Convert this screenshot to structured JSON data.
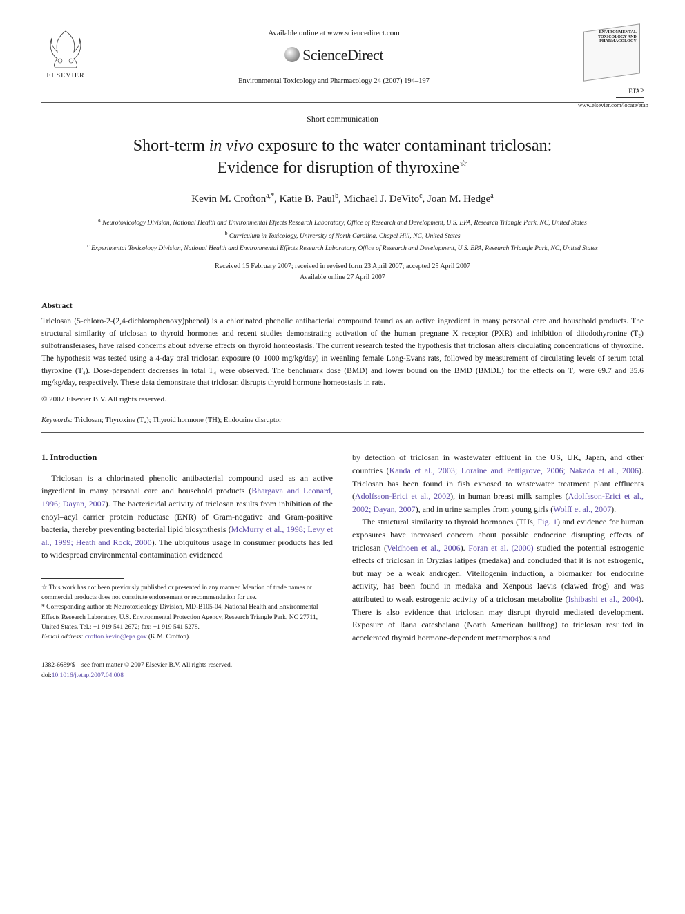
{
  "header": {
    "elsevier_label": "ELSEVIER",
    "available_online": "Available online at www.sciencedirect.com",
    "sciencedirect_label": "ScienceDirect",
    "journal_reference": "Environmental Toxicology and Pharmacology 24 (2007) 194–197",
    "journal_cover_title": "ENVIRONMENTAL\nTOXICOLOGY AND\nPHARMACOLOGY",
    "etap_label": "ETAP",
    "journal_url": "www.elsevier.com/locate/etap"
  },
  "article": {
    "type": "Short communication",
    "title_line1": "Short-term in vivo exposure to the water contaminant triclosan:",
    "title_line2": "Evidence for disruption of thyroxine",
    "title_star": "☆"
  },
  "authors": {
    "a1": "Kevin M. Crofton",
    "a1_sup": "a,*",
    "a2": "Katie B. Paul",
    "a2_sup": "b",
    "a3": "Michael J. DeVito",
    "a3_sup": "c",
    "a4": "Joan M. Hedge",
    "a4_sup": "a"
  },
  "affiliations": {
    "a": "Neurotoxicology Division, National Health and Environmental Effects Research Laboratory, Office of Research and Development, U.S. EPA, Research Triangle Park, NC, United States",
    "b": "Curriculum in Toxicology, University of North Carolina, Chapel Hill, NC, United States",
    "c": "Experimental Toxicology Division, National Health and Environmental Effects Research Laboratory, Office of Research and Development, U.S. EPA, Research Triangle Park, NC, United States"
  },
  "dates": {
    "received": "Received 15 February 2007; received in revised form 23 April 2007; accepted 25 April 2007",
    "available": "Available online 27 April 2007"
  },
  "abstract": {
    "heading": "Abstract",
    "body": "Triclosan (5-chloro-2-(2,4-dichlorophenoxy)phenol) is a chlorinated phenolic antibacterial compound found as an active ingredient in many personal care and household products. The structural similarity of triclosan to thyroid hormones and recent studies demonstrating activation of the human pregnane X receptor (PXR) and inhibition of diiodothyronine (T₂) sulfotransferases, have raised concerns about adverse effects on thyroid homeostasis. The current research tested the hypothesis that triclosan alters circulating concentrations of thyroxine. The hypothesis was tested using a 4-day oral triclosan exposure (0–1000 mg/kg/day) in weanling female Long-Evans rats, followed by measurement of circulating levels of serum total thyroxine (T₄). Dose-dependent decreases in total T₄ were observed. The benchmark dose (BMD) and lower bound on the BMD (BMDL) for the effects on T₄ were 69.7 and 35.6 mg/kg/day, respectively. These data demonstrate that triclosan disrupts thyroid hormone homeostasis in rats.",
    "copyright": "© 2007 Elsevier B.V. All rights reserved."
  },
  "keywords": {
    "label": "Keywords:",
    "list": "Triclosan; Thyroxine (T₄); Thyroid hormone (TH); Endocrine disruptor"
  },
  "section1": {
    "heading": "1. Introduction",
    "p1_a": "Triclosan is a chlorinated phenolic antibacterial compound used as an active ingredient in many personal care and household products (",
    "p1_link1": "Bhargava and Leonard, 1996; Dayan, 2007",
    "p1_b": "). The bactericidal activity of triclosan results from inhibition of the enoyl–acyl carrier protein reductase (ENR) of Gram-negative and Gram-positive bacteria, thereby preventing bacterial lipid biosynthesis (",
    "p1_link2": "McMurry et al., 1998; Levy et al., 1999; Heath and Rock, 2000",
    "p1_c": "). The ubiquitous usage in consumer products has led to widespread environmental contamination evidenced",
    "p2_a": "by detection of triclosan in wastewater effluent in the US, UK, Japan, and other countries (",
    "p2_link1": "Kanda et al., 2003; Loraine and Pettigrove, 2006; Nakada et al., 2006",
    "p2_b": "). Triclosan has been found in fish exposed to wastewater treatment plant effluents (",
    "p2_link2": "Adolfsson-Erici et al., 2002",
    "p2_c": "), in human breast milk samples (",
    "p2_link3": "Adolfsson-Erici et al., 2002; Dayan, 2007",
    "p2_d": "), and in urine samples from young girls (",
    "p2_link4": "Wolff et al., 2007",
    "p2_e": ").",
    "p3_a": "The structural similarity to thyroid hormones (THs, ",
    "p3_link1": "Fig. 1",
    "p3_b": ") and evidence for human exposures have increased concern about possible endocrine disrupting effects of triclosan (",
    "p3_link2": "Veldhoen et al., 2006",
    "p3_c": "). ",
    "p3_link3": "Foran et al. (2000)",
    "p3_d": " studied the potential estrogenic effects of triclosan in Oryzias latipes (medaka) and concluded that it is not estrogenic, but may be a weak androgen. Vitellogenin induction, a biomarker for endocrine activity, has been found in medaka and Xenpous laevis (clawed frog) and was attributed to weak estrogenic activity of a triclosan metabolite (",
    "p3_link4": "Ishibashi et al., 2004",
    "p3_e": "). There is also evidence that triclosan may disrupt thyroid mediated development. Exposure of Rana catesbeiana (North American bullfrog) to triclosan resulted in accelerated thyroid hormone-dependent metamorphosis and"
  },
  "footnotes": {
    "star": "☆ This work has not been previously published or presented in any manner. Mention of trade names or commercial products does not constitute endorsement or recommendation for use.",
    "corr": "* Corresponding author at: Neurotoxicology Division, MD-B105-04, National Health and Environmental Effects Research Laboratory, U.S. Environmental Protection Agency, Research Triangle Park, NC 27711, United States. Tel.: +1 919 541 2672; fax: +1 919 541 5278.",
    "email_label": "E-mail address:",
    "email": "crofton.kevin@epa.gov",
    "email_suffix": " (K.M. Crofton)."
  },
  "footer": {
    "line1": "1382-6689/$ – see front matter © 2007 Elsevier B.V. All rights reserved.",
    "doi_label": "doi:",
    "doi": "10.1016/j.etap.2007.04.008"
  },
  "colors": {
    "link": "#5b4aa8",
    "text": "#1a1a1a",
    "rule": "#555555"
  }
}
